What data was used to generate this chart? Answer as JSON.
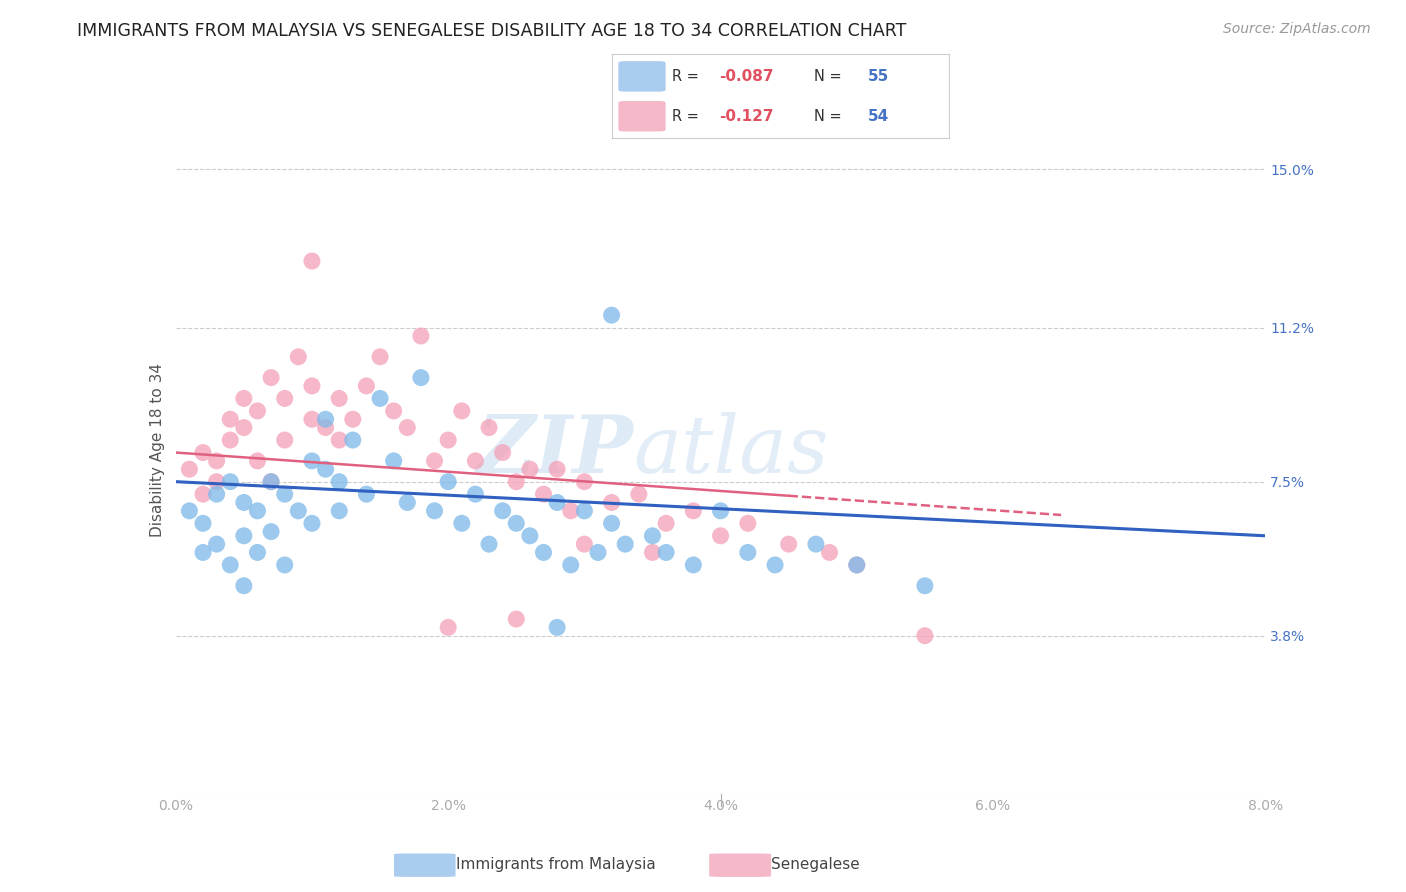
{
  "title": "IMMIGRANTS FROM MALAYSIA VS SENEGALESE DISABILITY AGE 18 TO 34 CORRELATION CHART",
  "source": "Source: ZipAtlas.com",
  "ylabel": "Disability Age 18 to 34",
  "right_yticks": [
    "15.0%",
    "11.2%",
    "7.5%",
    "3.8%"
  ],
  "right_ytick_vals": [
    0.15,
    0.112,
    0.075,
    0.038
  ],
  "watermark_zip": "ZIP",
  "watermark_atlas": "atlas",
  "blue_scatter_x": [
    0.001,
    0.002,
    0.002,
    0.003,
    0.003,
    0.004,
    0.004,
    0.005,
    0.005,
    0.005,
    0.006,
    0.006,
    0.007,
    0.007,
    0.008,
    0.008,
    0.009,
    0.01,
    0.01,
    0.011,
    0.011,
    0.012,
    0.012,
    0.013,
    0.014,
    0.015,
    0.016,
    0.017,
    0.018,
    0.019,
    0.02,
    0.021,
    0.022,
    0.023,
    0.024,
    0.025,
    0.026,
    0.027,
    0.028,
    0.029,
    0.03,
    0.031,
    0.032,
    0.033,
    0.035,
    0.036,
    0.038,
    0.04,
    0.042,
    0.044,
    0.047,
    0.05,
    0.055,
    0.032,
    0.028
  ],
  "blue_scatter_y": [
    0.068,
    0.065,
    0.058,
    0.072,
    0.06,
    0.075,
    0.055,
    0.07,
    0.062,
    0.05,
    0.068,
    0.058,
    0.075,
    0.063,
    0.072,
    0.055,
    0.068,
    0.08,
    0.065,
    0.09,
    0.078,
    0.075,
    0.068,
    0.085,
    0.072,
    0.095,
    0.08,
    0.07,
    0.1,
    0.068,
    0.075,
    0.065,
    0.072,
    0.06,
    0.068,
    0.065,
    0.062,
    0.058,
    0.07,
    0.055,
    0.068,
    0.058,
    0.065,
    0.06,
    0.062,
    0.058,
    0.055,
    0.068,
    0.058,
    0.055,
    0.06,
    0.055,
    0.05,
    0.115,
    0.04
  ],
  "pink_scatter_x": [
    0.001,
    0.002,
    0.002,
    0.003,
    0.003,
    0.004,
    0.004,
    0.005,
    0.005,
    0.006,
    0.006,
    0.007,
    0.007,
    0.008,
    0.008,
    0.009,
    0.01,
    0.01,
    0.011,
    0.012,
    0.012,
    0.013,
    0.014,
    0.015,
    0.016,
    0.017,
    0.018,
    0.019,
    0.02,
    0.021,
    0.022,
    0.023,
    0.024,
    0.025,
    0.026,
    0.027,
    0.028,
    0.029,
    0.03,
    0.032,
    0.034,
    0.036,
    0.038,
    0.04,
    0.042,
    0.045,
    0.048,
    0.03,
    0.035,
    0.02,
    0.025,
    0.05,
    0.055,
    0.01
  ],
  "pink_scatter_y": [
    0.078,
    0.072,
    0.082,
    0.08,
    0.075,
    0.09,
    0.085,
    0.095,
    0.088,
    0.092,
    0.08,
    0.075,
    0.1,
    0.095,
    0.085,
    0.105,
    0.098,
    0.09,
    0.088,
    0.095,
    0.085,
    0.09,
    0.098,
    0.105,
    0.092,
    0.088,
    0.11,
    0.08,
    0.085,
    0.092,
    0.08,
    0.088,
    0.082,
    0.075,
    0.078,
    0.072,
    0.078,
    0.068,
    0.075,
    0.07,
    0.072,
    0.065,
    0.068,
    0.062,
    0.065,
    0.06,
    0.058,
    0.06,
    0.058,
    0.04,
    0.042,
    0.055,
    0.038,
    0.128
  ],
  "blue_line_x": [
    0.0,
    0.08
  ],
  "blue_line_y": [
    0.075,
    0.062
  ],
  "pink_line_x": [
    0.0,
    0.065
  ],
  "pink_line_y": [
    0.082,
    0.067
  ],
  "blue_color": "#7bb8e8",
  "pink_color": "#f4a0b8",
  "blue_line_color": "#3060c0",
  "pink_line_color": "#e06080",
  "blue_legend_color": "#aaccee",
  "pink_legend_color": "#f4b8c8",
  "xlim": [
    0.0,
    0.08
  ],
  "ylim": [
    0.0,
    0.165
  ],
  "xticks": [
    0.0,
    0.02,
    0.04,
    0.06,
    0.08
  ],
  "xtick_labels": [
    "0.0%",
    "2.0%",
    "4.0%",
    "6.0%",
    "8.0%"
  ],
  "figsize": [
    14.06,
    8.92
  ],
  "dpi": 100
}
